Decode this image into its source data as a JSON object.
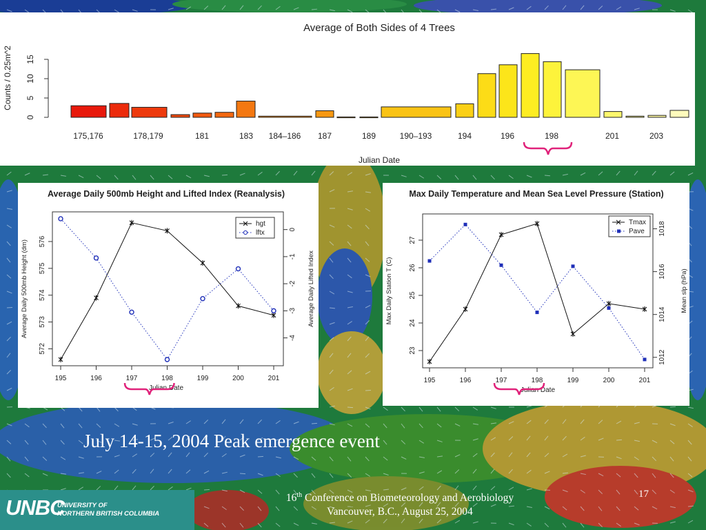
{
  "slide": {
    "headline": "July 14-15, 2004 Peak emergence event",
    "footer_superscript_num": "16",
    "footer_superscript": "th",
    "footer_line1_rest": " Conference on Biometeorology and Aerobiology",
    "footer_line2": "Vancouver, B.C., August 25, 2004",
    "slide_number": "17",
    "logo_mark": "UNBC",
    "logo_line1": "UNIVERSITY OF",
    "logo_line2": "NORTHERN BRITISH COLUMBIA"
  },
  "chart_data": [
    {
      "type": "bar",
      "title": "Average of Both Sides of 4 Trees",
      "xlabel": "Julian Date",
      "ylabel": "Counts / 0.25m^2",
      "ylim": [
        0,
        17
      ],
      "yticks": [
        0,
        5,
        10,
        15
      ],
      "bars": [
        {
          "label": "175,176",
          "value": 3.0
        },
        {
          "label": "",
          "value": 3.6
        },
        {
          "label": "178,179",
          "value": 2.6
        },
        {
          "label": "",
          "value": 0.7
        },
        {
          "label": "181",
          "value": 1.1
        },
        {
          "label": "",
          "value": 1.3
        },
        {
          "label": "183",
          "value": 4.2
        },
        {
          "label": "184–186",
          "value": 0.3
        },
        {
          "label": "187",
          "value": 1.7
        },
        {
          "label": "",
          "value": 0.1
        },
        {
          "label": "189",
          "value": 0.1
        },
        {
          "label": "190–193",
          "value": 2.7
        },
        {
          "label": "194",
          "value": 3.5
        },
        {
          "label": "",
          "value": 11.3
        },
        {
          "label": "196",
          "value": 13.6
        },
        {
          "label": "",
          "value": 16.5
        },
        {
          "label": "198",
          "value": 14.4
        },
        {
          "label": "",
          "value": 12.3
        },
        {
          "label": "201",
          "value": 1.5
        },
        {
          "label": "",
          "value": 0.3
        },
        {
          "label": "203",
          "value": 0.5
        },
        {
          "label": "",
          "value": 1.8
        }
      ],
      "colors": [
        "#e8190c",
        "#ec2b0c",
        "#ee3a0d",
        "#f04a0e",
        "#f2590f",
        "#f36810",
        "#f47811",
        "#f68812",
        "#f79812",
        "#f8a713",
        "#f9b514",
        "#fac315",
        "#fbd016",
        "#fcdc17",
        "#fce51a",
        "#fded22",
        "#fdf33b",
        "#fdf655",
        "#fef86e",
        "#fef988",
        "#fefaa2",
        "#fefbbc"
      ]
    },
    {
      "type": "line",
      "title": "Average Daily 500mb Height and Lifted Index (Reanalysis)",
      "xlabel": "Julian Date",
      "ylabel": "Average Daily 500mb Height (dm)",
      "y2label": "Average Daily Lifted Index",
      "x": [
        195,
        196,
        197,
        198,
        199,
        200,
        201
      ],
      "ylim": [
        571.6,
        576.9
      ],
      "yticks": [
        572,
        573,
        574,
        575,
        576
      ],
      "y2lim": [
        -4.8,
        0.45
      ],
      "y2ticks": [
        -4,
        -3,
        -2,
        -1,
        0
      ],
      "series": [
        {
          "name": "hgt",
          "axis": "left",
          "values": [
            571.6,
            573.9,
            576.7,
            576.4,
            575.2,
            573.6,
            573.25
          ]
        },
        {
          "name": "lftx",
          "axis": "right",
          "values": [
            0.4,
            -1.05,
            -3.05,
            -4.8,
            -2.55,
            -1.45,
            -3.0
          ]
        }
      ],
      "legend": "top-right"
    },
    {
      "type": "line",
      "title": "Max Daily Temperature and Mean Sea Level Pressure (Station)",
      "xlabel": "Julian Date",
      "ylabel": "Max Daily Station T (C)",
      "y2label": "Mean slp (hPa)",
      "x": [
        195,
        196,
        197,
        198,
        199,
        200,
        201
      ],
      "ylim": [
        22.6,
        27.8
      ],
      "yticks": [
        23,
        24,
        25,
        26,
        27
      ],
      "y2lim": [
        1011.8,
        1018.5
      ],
      "y2ticks": [
        1012,
        1014,
        1016,
        1018
      ],
      "series": [
        {
          "name": "Tmax",
          "axis": "left",
          "values": [
            22.6,
            24.5,
            27.2,
            27.6,
            23.6,
            24.7,
            24.5
          ]
        },
        {
          "name": "Pave",
          "axis": "right",
          "values": [
            1016.5,
            1018.2,
            1016.3,
            1014.1,
            1016.25,
            1014.3,
            1011.9
          ]
        }
      ],
      "legend": "top-right"
    }
  ]
}
